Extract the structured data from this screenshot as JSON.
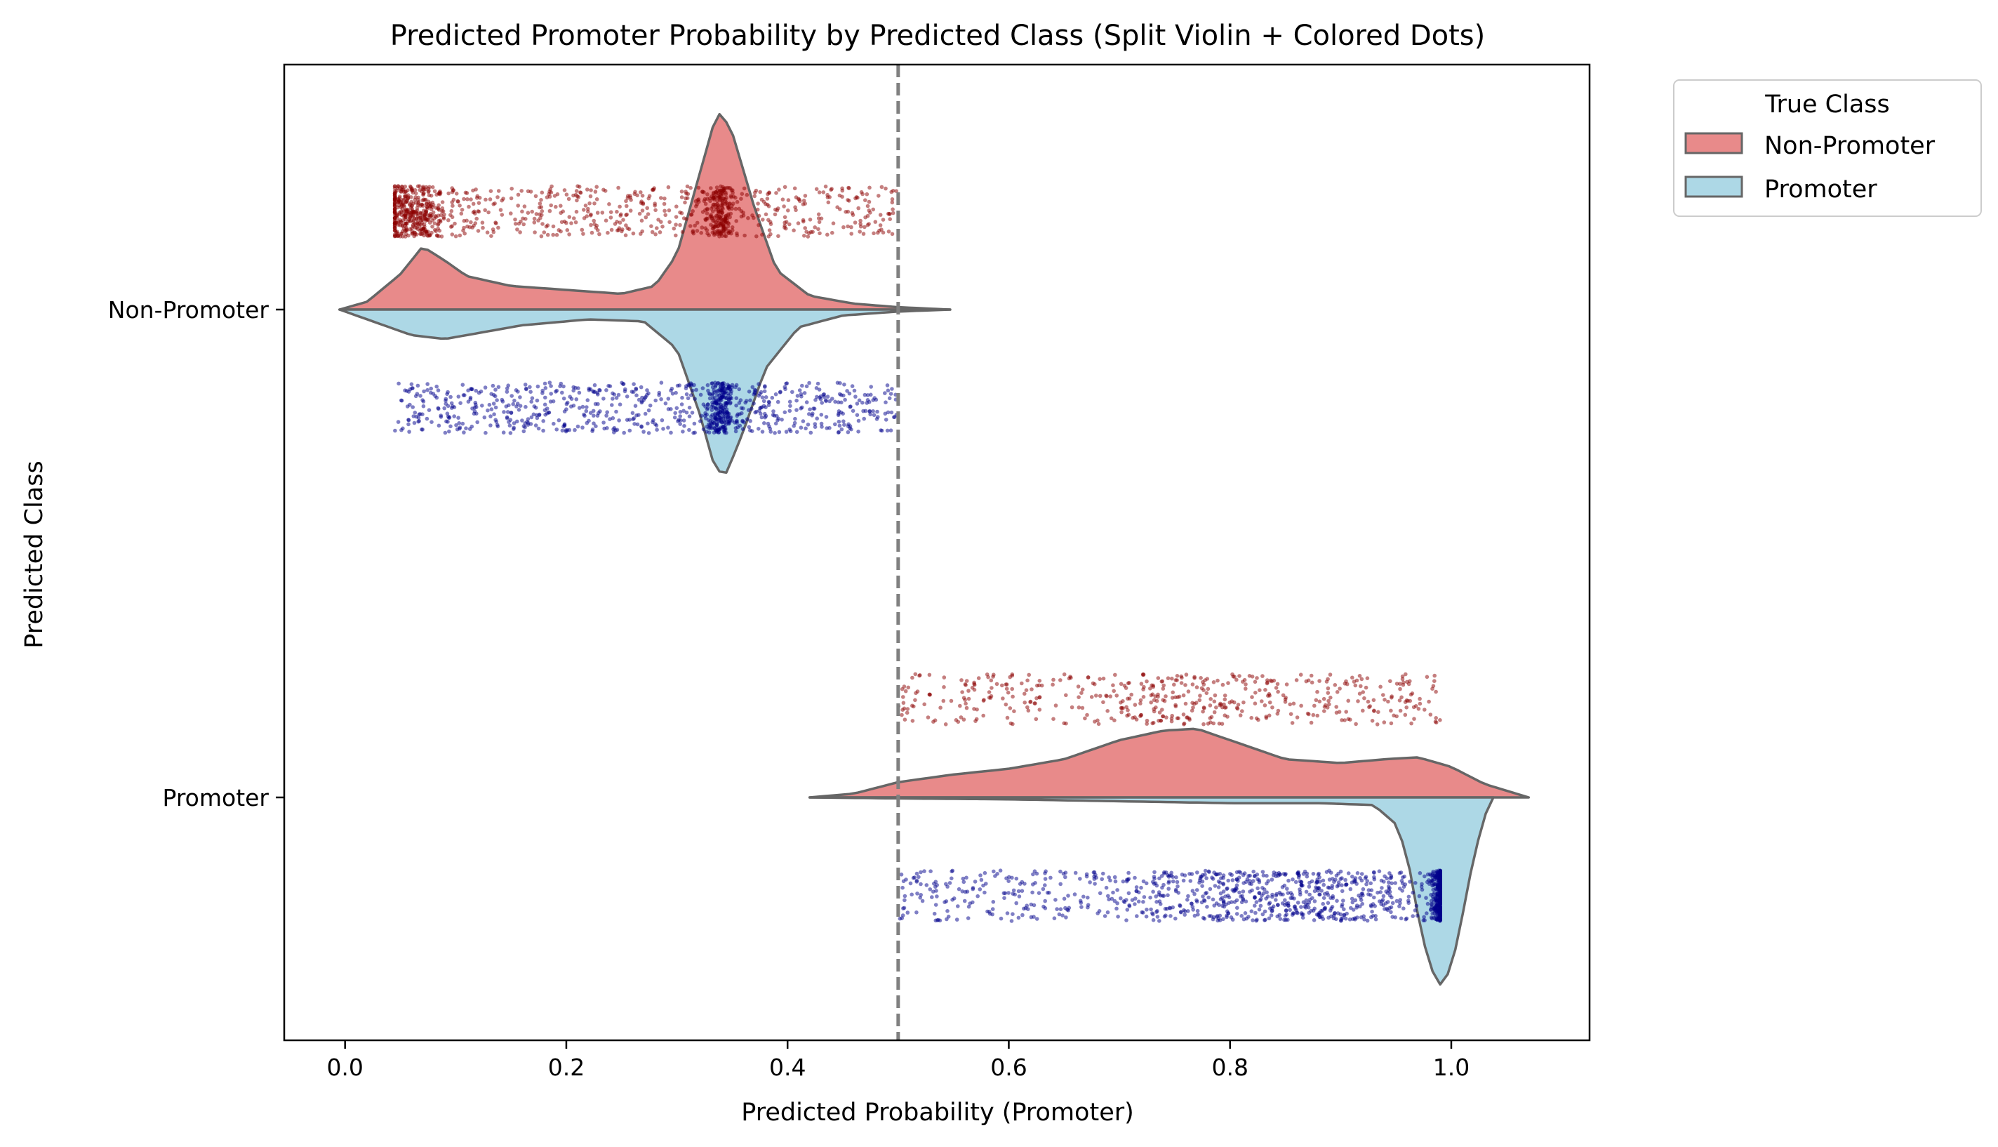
{
  "chart_data": {
    "type": "violin",
    "title": "Predicted Promoter Probability by Predicted Class (Split Violin + Colored Dots)",
    "xlabel": "Predicted Probability (Promoter)",
    "ylabel": "Predicted Class",
    "xlim": [
      -0.055,
      1.125
    ],
    "xticks": [
      "0.0",
      "0.2",
      "0.4",
      "0.6",
      "0.8",
      "1.0"
    ],
    "xtick_values": [
      0.0,
      0.2,
      0.4,
      0.6,
      0.8,
      1.0
    ],
    "categories": [
      "Non-Promoter",
      "Promoter"
    ],
    "threshold": 0.5,
    "grid": false,
    "legend": {
      "title": "True Class",
      "position": "outside-top-right",
      "entries": [
        "Non-Promoter",
        "Promoter"
      ]
    },
    "series": [
      {
        "name": "Non-Promoter",
        "side": "upper",
        "violin_color": "#e88a8a",
        "dot_color": "#8b0000"
      },
      {
        "name": "Promoter",
        "side": "lower",
        "violin_color": "#add8e6",
        "dot_color": "#00008b"
      }
    ],
    "violins": [
      {
        "category": "Non-Promoter",
        "true_class": "Non-Promoter",
        "side": "upper",
        "density_profile": [
          [
            -0.005,
            0.0
          ],
          [
            0.02,
            0.04
          ],
          [
            0.05,
            0.18
          ],
          [
            0.07,
            0.32
          ],
          [
            0.09,
            0.25
          ],
          [
            0.11,
            0.17
          ],
          [
            0.15,
            0.12
          ],
          [
            0.2,
            0.1
          ],
          [
            0.25,
            0.08
          ],
          [
            0.28,
            0.12
          ],
          [
            0.3,
            0.28
          ],
          [
            0.32,
            0.68
          ],
          [
            0.335,
            0.98
          ],
          [
            0.34,
            1.0
          ],
          [
            0.35,
            0.9
          ],
          [
            0.37,
            0.52
          ],
          [
            0.39,
            0.2
          ],
          [
            0.42,
            0.07
          ],
          [
            0.46,
            0.03
          ],
          [
            0.5,
            0.012
          ],
          [
            0.547,
            0.0
          ]
        ],
        "dot_range": [
          0.045,
          0.5
        ],
        "dot_count": 1100,
        "dot_clusters": [
          {
            "center": 0.06,
            "spread": 0.015,
            "weight": 0.3
          },
          {
            "center": 0.34,
            "spread": 0.006,
            "weight": 0.15
          }
        ]
      },
      {
        "category": "Non-Promoter",
        "true_class": "Promoter",
        "side": "lower",
        "density_profile": [
          [
            -0.005,
            0.0
          ],
          [
            0.03,
            0.07
          ],
          [
            0.06,
            0.13
          ],
          [
            0.09,
            0.15
          ],
          [
            0.12,
            0.12
          ],
          [
            0.16,
            0.08
          ],
          [
            0.22,
            0.05
          ],
          [
            0.27,
            0.06
          ],
          [
            0.3,
            0.2
          ],
          [
            0.32,
            0.52
          ],
          [
            0.335,
            0.82
          ],
          [
            0.345,
            0.83
          ],
          [
            0.36,
            0.62
          ],
          [
            0.38,
            0.3
          ],
          [
            0.41,
            0.09
          ],
          [
            0.45,
            0.03
          ],
          [
            0.5,
            0.01
          ],
          [
            0.547,
            0.0
          ]
        ],
        "dot_range": [
          0.045,
          0.5
        ],
        "dot_count": 900,
        "dot_clusters": [
          {
            "center": 0.34,
            "spread": 0.006,
            "weight": 0.22
          }
        ]
      },
      {
        "category": "Promoter",
        "true_class": "Non-Promoter",
        "side": "upper",
        "density_profile": [
          [
            0.42,
            0.0
          ],
          [
            0.46,
            0.02
          ],
          [
            0.5,
            0.08
          ],
          [
            0.55,
            0.12
          ],
          [
            0.6,
            0.15
          ],
          [
            0.65,
            0.2
          ],
          [
            0.7,
            0.3
          ],
          [
            0.74,
            0.35
          ],
          [
            0.77,
            0.36
          ],
          [
            0.8,
            0.3
          ],
          [
            0.85,
            0.2
          ],
          [
            0.9,
            0.18
          ],
          [
            0.94,
            0.2
          ],
          [
            0.97,
            0.21
          ],
          [
            1.0,
            0.16
          ],
          [
            1.03,
            0.07
          ],
          [
            1.07,
            0.0
          ]
        ],
        "dot_range": [
          0.5,
          0.99
        ],
        "dot_count": 500,
        "dot_clusters": [
          {
            "center": 0.76,
            "spread": 0.05,
            "weight": 0.2
          }
        ]
      },
      {
        "category": "Promoter",
        "true_class": "Promoter",
        "side": "lower",
        "density_profile": [
          [
            0.42,
            0.0
          ],
          [
            0.5,
            0.005
          ],
          [
            0.6,
            0.01
          ],
          [
            0.7,
            0.02
          ],
          [
            0.8,
            0.03
          ],
          [
            0.88,
            0.03
          ],
          [
            0.93,
            0.04
          ],
          [
            0.95,
            0.14
          ],
          [
            0.96,
            0.3
          ],
          [
            0.97,
            0.62
          ],
          [
            0.98,
            0.88
          ],
          [
            0.99,
            0.98
          ],
          [
            1.0,
            0.9
          ],
          [
            1.01,
            0.62
          ],
          [
            1.02,
            0.32
          ],
          [
            1.03,
            0.1
          ],
          [
            1.038,
            0.0
          ]
        ],
        "dot_range": [
          0.5,
          0.99
        ],
        "dot_count": 1200,
        "dot_clusters": [
          {
            "center": 0.99,
            "spread": 0.004,
            "weight": 0.28
          },
          {
            "center": 0.85,
            "spread": 0.07,
            "weight": 0.3
          }
        ]
      }
    ]
  }
}
